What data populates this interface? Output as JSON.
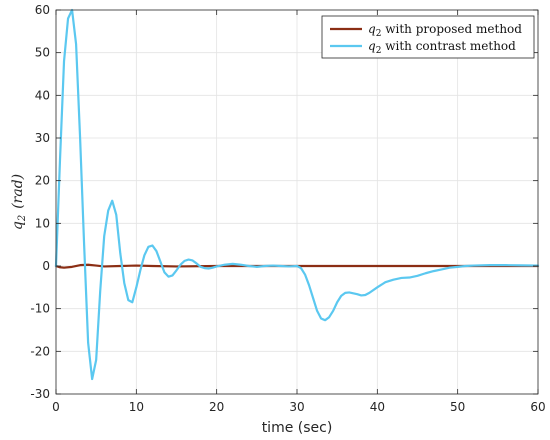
{
  "chart_data": {
    "type": "line",
    "xlabel": "time (sec)",
    "ylabel": {
      "var": "q",
      "sub": "2",
      "unit": "(rad)"
    },
    "xlim": [
      0,
      60
    ],
    "ylim": [
      -30,
      60
    ],
    "xticks": [
      0,
      10,
      20,
      30,
      40,
      50,
      60
    ],
    "yticks": [
      -30,
      -20,
      -10,
      0,
      10,
      20,
      30,
      40,
      50,
      60
    ],
    "grid": true,
    "legend_position": "top-right",
    "series": [
      {
        "name": "q2 with proposed method",
        "legend_var": "q",
        "legend_sub": "2",
        "legend_rest": " with proposed method",
        "color": "#8B2E14",
        "points": [
          [
            0,
            0
          ],
          [
            0.5,
            -0.3
          ],
          [
            1.0,
            -0.4
          ],
          [
            2.0,
            -0.2
          ],
          [
            3.0,
            0.2
          ],
          [
            4.0,
            0.3
          ],
          [
            5.0,
            0.1
          ],
          [
            6.0,
            -0.1
          ],
          [
            8.0,
            0
          ],
          [
            10.0,
            0.1
          ],
          [
            12.0,
            0
          ],
          [
            15.0,
            -0.1
          ],
          [
            20.0,
            0
          ],
          [
            25.0,
            0
          ],
          [
            30.0,
            0
          ],
          [
            35.0,
            0
          ],
          [
            40.0,
            0
          ],
          [
            50.0,
            0
          ],
          [
            60.0,
            0
          ]
        ]
      },
      {
        "name": "q2 with contrast method",
        "legend_var": "q",
        "legend_sub": "2",
        "legend_rest": " with contrast method",
        "color": "#5BC8F0",
        "points": [
          [
            0,
            0
          ],
          [
            0.5,
            25
          ],
          [
            1.0,
            48
          ],
          [
            1.5,
            58
          ],
          [
            2.0,
            60
          ],
          [
            2.5,
            52
          ],
          [
            3.0,
            30
          ],
          [
            3.5,
            5
          ],
          [
            4.0,
            -18
          ],
          [
            4.5,
            -26.5
          ],
          [
            5.0,
            -22
          ],
          [
            5.5,
            -6
          ],
          [
            6.0,
            7
          ],
          [
            6.5,
            13
          ],
          [
            7.0,
            15.3
          ],
          [
            7.5,
            12
          ],
          [
            8.0,
            3
          ],
          [
            8.5,
            -4
          ],
          [
            9.0,
            -8
          ],
          [
            9.5,
            -8.5
          ],
          [
            10.0,
            -5
          ],
          [
            10.5,
            -1
          ],
          [
            11.0,
            2.5
          ],
          [
            11.5,
            4.5
          ],
          [
            12.0,
            4.8
          ],
          [
            12.5,
            3.5
          ],
          [
            13.0,
            1
          ],
          [
            13.5,
            -1.5
          ],
          [
            14.0,
            -2.5
          ],
          [
            14.5,
            -2.2
          ],
          [
            15.0,
            -1
          ],
          [
            15.5,
            0.3
          ],
          [
            16.0,
            1.2
          ],
          [
            16.5,
            1.5
          ],
          [
            17.0,
            1.3
          ],
          [
            17.5,
            0.6
          ],
          [
            18.0,
            -0.2
          ],
          [
            18.5,
            -0.5
          ],
          [
            19.0,
            -0.6
          ],
          [
            19.5,
            -0.4
          ],
          [
            20.0,
            -0.1
          ],
          [
            21.0,
            0.3
          ],
          [
            22.0,
            0.5
          ],
          [
            23.0,
            0.3
          ],
          [
            24.0,
            0
          ],
          [
            25.0,
            -0.2
          ],
          [
            26.0,
            0
          ],
          [
            27.0,
            0.1
          ],
          [
            28.0,
            0
          ],
          [
            29.0,
            -0.1
          ],
          [
            30.0,
            0
          ],
          [
            30.5,
            -0.5
          ],
          [
            31.0,
            -2
          ],
          [
            31.5,
            -4.5
          ],
          [
            32.0,
            -7.5
          ],
          [
            32.5,
            -10.5
          ],
          [
            33.0,
            -12.3
          ],
          [
            33.5,
            -12.7
          ],
          [
            34.0,
            -12
          ],
          [
            34.5,
            -10.5
          ],
          [
            35.0,
            -8.5
          ],
          [
            35.5,
            -7
          ],
          [
            36.0,
            -6.3
          ],
          [
            36.5,
            -6.2
          ],
          [
            37.0,
            -6.4
          ],
          [
            37.5,
            -6.6
          ],
          [
            38.0,
            -6.9
          ],
          [
            38.5,
            -6.8
          ],
          [
            39.0,
            -6.3
          ],
          [
            40.0,
            -5
          ],
          [
            41.0,
            -3.8
          ],
          [
            42.0,
            -3.2
          ],
          [
            43.0,
            -2.8
          ],
          [
            44.0,
            -2.7
          ],
          [
            45.0,
            -2.3
          ],
          [
            46.0,
            -1.7
          ],
          [
            47.0,
            -1.2
          ],
          [
            48.0,
            -0.8
          ],
          [
            49.0,
            -0.4
          ],
          [
            50.0,
            -0.2
          ],
          [
            51.0,
            0
          ],
          [
            52.0,
            0.1
          ],
          [
            54.0,
            0.2
          ],
          [
            56.0,
            0.2
          ],
          [
            58.0,
            0.15
          ],
          [
            60.0,
            0.1
          ]
        ]
      }
    ]
  }
}
